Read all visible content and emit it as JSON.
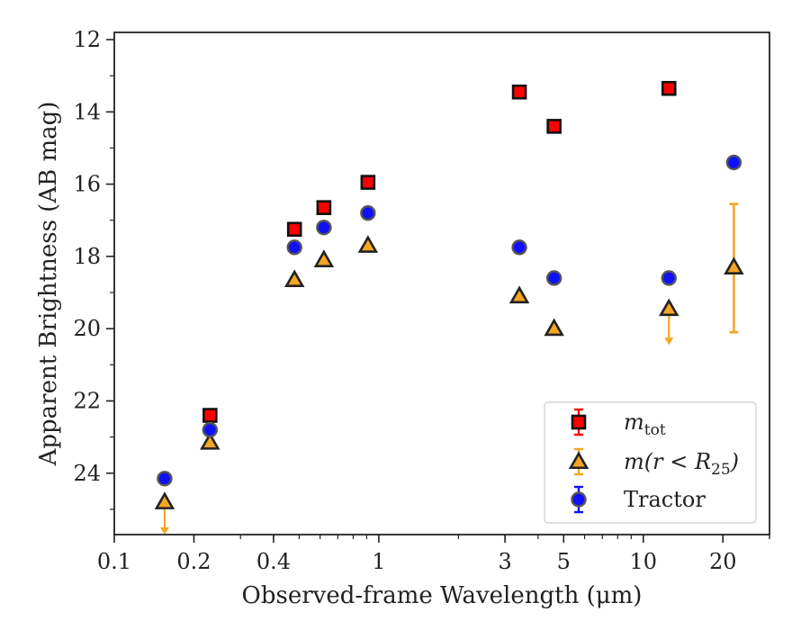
{
  "chart_data": {
    "type": "scatter",
    "title": "",
    "xlabel": "Observed-frame Wavelength (μm)",
    "ylabel": "Apparent Brightness (AB mag)",
    "xscale": "log",
    "xlim": [
      0.1,
      30
    ],
    "ylim": [
      25.7,
      11.8
    ],
    "y_inverted": true,
    "xticks": [
      0.1,
      0.2,
      0.4,
      1,
      3,
      5,
      10,
      20
    ],
    "xtick_labels": [
      "0.1",
      "0.2",
      "0.4",
      "1",
      "3",
      "5",
      "10",
      "20"
    ],
    "yticks": [
      12,
      14,
      16,
      18,
      20,
      22,
      24
    ],
    "ytick_labels": [
      "12",
      "14",
      "16",
      "18",
      "20",
      "22",
      "24"
    ],
    "legend_position": "bottom-right",
    "series": [
      {
        "name": "m_tot",
        "marker": "square",
        "color": "#ff0000",
        "edge": "#111111",
        "points": [
          {
            "x": 0.23,
            "y": 22.4
          },
          {
            "x": 0.48,
            "y": 17.25
          },
          {
            "x": 0.62,
            "y": 16.65
          },
          {
            "x": 0.91,
            "y": 15.95
          },
          {
            "x": 3.4,
            "y": 13.45
          },
          {
            "x": 4.6,
            "y": 14.4
          },
          {
            "x": 12.5,
            "y": 13.35
          }
        ]
      },
      {
        "name": "m(r < R25)",
        "marker": "triangle",
        "color": "#f5a623",
        "edge": "#222222",
        "points": [
          {
            "x": 0.155,
            "y": 24.8,
            "upper_limit": true,
            "arrow_to": 25.7
          },
          {
            "x": 0.23,
            "y": 23.15
          },
          {
            "x": 0.48,
            "y": 18.65
          },
          {
            "x": 0.62,
            "y": 18.1
          },
          {
            "x": 0.91,
            "y": 17.7
          },
          {
            "x": 3.4,
            "y": 19.1
          },
          {
            "x": 4.6,
            "y": 20.0
          },
          {
            "x": 12.5,
            "y": 19.45,
            "upper_limit": true,
            "arrow_to": 20.45
          },
          {
            "x": 22.0,
            "y": 18.3,
            "err_lo": 16.55,
            "err_hi": 20.1
          }
        ]
      },
      {
        "name": "Tractor",
        "marker": "circle",
        "color": "#1010ff",
        "edge": "#555555",
        "points": [
          {
            "x": 0.155,
            "y": 24.15
          },
          {
            "x": 0.23,
            "y": 22.8
          },
          {
            "x": 0.48,
            "y": 17.75
          },
          {
            "x": 0.62,
            "y": 17.2
          },
          {
            "x": 0.91,
            "y": 16.8
          },
          {
            "x": 3.4,
            "y": 17.75
          },
          {
            "x": 4.6,
            "y": 18.6
          },
          {
            "x": 12.5,
            "y": 18.6
          },
          {
            "x": 22.0,
            "y": 15.4
          }
        ]
      }
    ],
    "legend": {
      "entries": [
        {
          "series": 0,
          "base": "m",
          "sub": "tot"
        },
        {
          "series": 1,
          "base": "m(r < R",
          "sub": "25",
          "tail": ")"
        },
        {
          "series": 2,
          "base": "Tractor",
          "sub": "",
          "tail": ""
        }
      ]
    }
  }
}
